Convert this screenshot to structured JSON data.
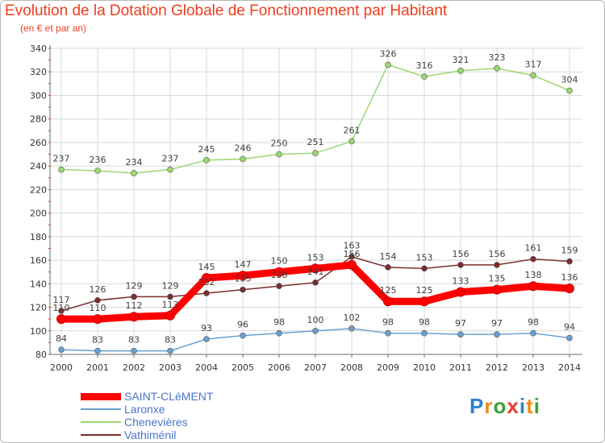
{
  "title": "Evolution de la Dotation Globale de Fonctionnement par Habitant",
  "subtitle": "(en € et par an)",
  "colors": {
    "title": "#ee3d1e",
    "axis": "#6e6e6e",
    "grid": "#d8d8d8",
    "label": "#404040",
    "legend_text": "#4a74c8"
  },
  "logo": {
    "text": "Proxiti",
    "colors": [
      "#2d7fd1",
      "#f28a1b",
      "#3aa03a",
      "#e53a2a",
      "#2d7fd1",
      "#f28a1b",
      "#3aa03a"
    ]
  },
  "chart_data": {
    "type": "line",
    "title": "Evolution de la Dotation Globale de Fonctionnement par Habitant",
    "subtitle": "(en € et par an)",
    "xlabel": "",
    "ylabel": "",
    "ylim": [
      80,
      340
    ],
    "yticks": [
      80,
      100,
      120,
      140,
      160,
      180,
      200,
      220,
      240,
      260,
      280,
      300,
      320,
      340
    ],
    "grid": true,
    "legend_position": "bottom-left",
    "x": [
      "2000",
      "2001",
      "2002",
      "2003",
      "2004",
      "2005",
      "2006",
      "2007",
      "2008",
      "2009",
      "2010",
      "2011",
      "2012",
      "2013",
      "2014"
    ],
    "series": [
      {
        "name": "SAINT-CLéMENT",
        "color": "#ff0000",
        "values": [
          110,
          110,
          112,
          113,
          145,
          147,
          150,
          153,
          156,
          125,
          125,
          133,
          135,
          138,
          136
        ]
      },
      {
        "name": "Laronxe",
        "color": "#6aa0d0",
        "values": [
          84,
          83,
          83,
          83,
          93,
          96,
          98,
          100,
          102,
          98,
          98,
          97,
          97,
          98,
          94
        ]
      },
      {
        "name": "Chenevières",
        "color": "#9ad870",
        "values": [
          237,
          236,
          234,
          237,
          245,
          246,
          250,
          251,
          261,
          326,
          316,
          321,
          323,
          317,
          304
        ]
      },
      {
        "name": "Vathiménil",
        "color": "#7a2e2e",
        "values": [
          117,
          126,
          129,
          129,
          132,
          135,
          138,
          141,
          163,
          154,
          153,
          156,
          156,
          161,
          159
        ]
      }
    ]
  }
}
